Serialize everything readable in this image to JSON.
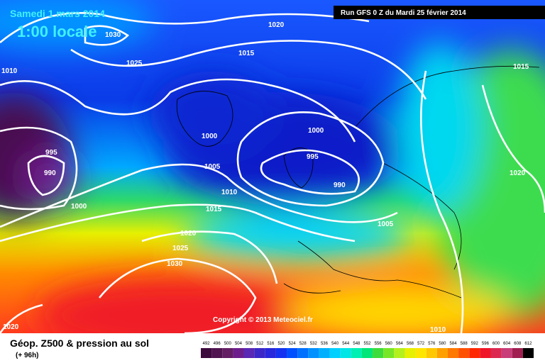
{
  "header": {
    "date": "Samedi 1 mars 2014",
    "time": "1:00 locale",
    "run": "Run GFS 0 Z du Mardi 25 février 2014"
  },
  "isobar_labels": [
    "1030",
    "1025",
    "1020",
    "1015",
    "1015",
    "1010",
    "1000",
    "1000",
    "995",
    "990",
    "995",
    "990",
    "1005",
    "1010",
    "1015",
    "1000",
    "1020",
    "1005",
    "1020",
    "1025",
    "1030",
    "1020",
    "1010"
  ],
  "copyright": "Copyright © 2013 Meteociel.fr",
  "footer": {
    "title": "Géop. Z500 & pression au sol",
    "lead": "(+ 96h)"
  },
  "scale": {
    "labels": [
      492,
      496,
      500,
      504,
      508,
      512,
      516,
      520,
      524,
      528,
      532,
      536,
      540,
      544,
      548,
      552,
      556,
      560,
      564,
      568,
      572,
      576,
      580,
      584,
      588,
      592,
      596,
      600,
      604,
      608,
      612
    ],
    "colors": [
      "#3c0a3c",
      "#501450",
      "#641e64",
      "#6e1e8c",
      "#5a28b4",
      "#3c28c8",
      "#2828dc",
      "#1432f0",
      "#0050ff",
      "#0070ff",
      "#0090ff",
      "#00b0ff",
      "#00d0ff",
      "#00e6e6",
      "#00f0b4",
      "#00e678",
      "#3cdc3c",
      "#78e628",
      "#b4f01e",
      "#e6f000",
      "#ffe600",
      "#ffc800",
      "#ffa000",
      "#ff7800",
      "#ff5000",
      "#ff2800",
      "#f01428",
      "#dc2850",
      "#c83c78",
      "#a01e50",
      "#000000"
    ]
  }
}
